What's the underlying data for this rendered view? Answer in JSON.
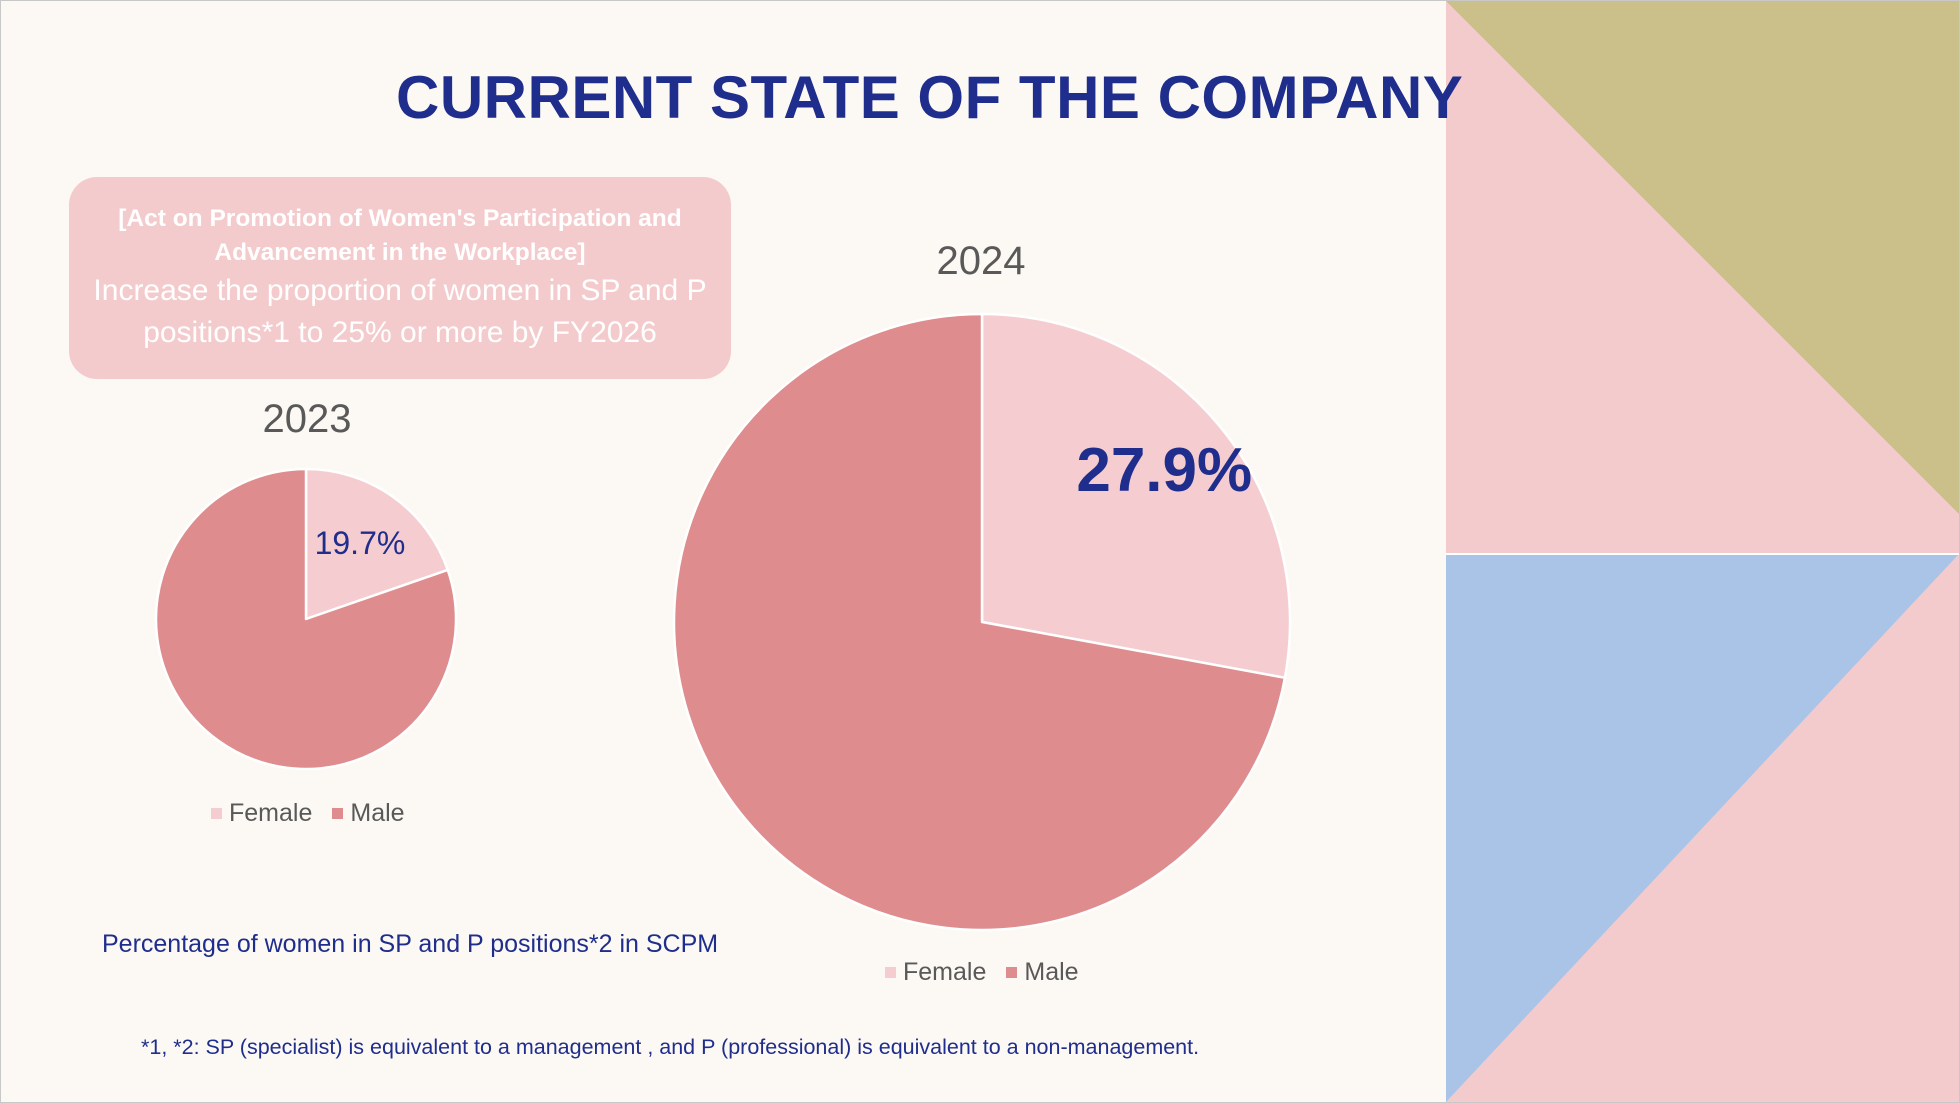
{
  "slide": {
    "title": "CURRENT STATE OF THE COMPANY",
    "target_box": {
      "act": "[Act on Promotion of Women's Participation and Advancement in the Workplace]",
      "goal": "Increase the proportion of women in SP and P positions*1 to 25% or more by FY2026"
    },
    "chart_caption": "Percentage of women in SP and P positions*2 in SCPM",
    "footnote": "*1, *2: SP (specialist) is equivalent to a management , and P (professional) is equivalent to a non-management."
  },
  "colors": {
    "title": "#1f2d8c",
    "female": "#f5cdd0",
    "male": "#de8c8d",
    "box": "#f4cbcd",
    "deco_pink": "#f4cbcd",
    "deco_gold": "#cbbf8a",
    "deco_blue": "#aac4e8",
    "background": "#fcf9f4"
  },
  "chart_data": [
    {
      "type": "pie",
      "title": "2023",
      "categories": [
        "Female",
        "Male"
      ],
      "values": [
        19.7,
        80.3
      ],
      "data_labels": [
        "19.7%",
        ""
      ],
      "legend": [
        "Female",
        "Male"
      ],
      "legend_position": "bottom"
    },
    {
      "type": "pie",
      "title": "2024",
      "categories": [
        "Female",
        "Male"
      ],
      "values": [
        27.9,
        72.1
      ],
      "data_labels": [
        "27.9%",
        ""
      ],
      "legend": [
        "Female",
        "Male"
      ],
      "legend_position": "bottom"
    }
  ]
}
